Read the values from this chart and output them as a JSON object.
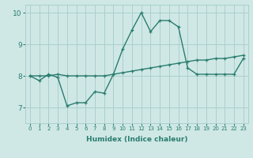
{
  "line1_x": [
    0,
    1,
    2,
    3,
    4,
    5,
    6,
    7,
    8,
    9,
    10,
    11,
    12,
    13,
    14,
    15,
    16,
    17,
    18,
    19,
    20,
    21,
    22,
    23
  ],
  "line1_y": [
    8.0,
    7.85,
    8.05,
    7.95,
    7.05,
    7.15,
    7.15,
    7.5,
    7.45,
    8.05,
    8.85,
    9.45,
    10.0,
    9.4,
    9.75,
    9.75,
    9.55,
    8.25,
    8.05,
    8.05,
    8.05,
    8.05,
    8.05,
    8.55
  ],
  "line2_x": [
    0,
    1,
    2,
    3,
    4,
    5,
    6,
    7,
    8,
    9,
    10,
    11,
    12,
    13,
    14,
    15,
    16,
    17,
    18,
    19,
    20,
    21,
    22,
    23
  ],
  "line2_y": [
    8.0,
    8.0,
    8.0,
    8.05,
    8.0,
    8.0,
    8.0,
    8.0,
    8.0,
    8.05,
    8.1,
    8.15,
    8.2,
    8.25,
    8.3,
    8.35,
    8.4,
    8.45,
    8.5,
    8.5,
    8.55,
    8.55,
    8.6,
    8.65
  ],
  "line_color": "#2a7d6e",
  "bg_color": "#cfe8e6",
  "grid_color": "#aacfcd",
  "xlabel": "Humidex (Indice chaleur)",
  "ylim": [
    6.5,
    10.25
  ],
  "xlim": [
    -0.5,
    23.5
  ],
  "yticks": [
    7,
    8,
    9,
    10
  ],
  "xticks": [
    0,
    1,
    2,
    3,
    4,
    5,
    6,
    7,
    8,
    9,
    10,
    11,
    12,
    13,
    14,
    15,
    16,
    17,
    18,
    19,
    20,
    21,
    22,
    23
  ],
  "marker": "+",
  "markersize": 3.5,
  "linewidth": 1.0,
  "xlabel_fontsize": 6.5,
  "xtick_fontsize": 5.0,
  "ytick_fontsize": 6.5
}
